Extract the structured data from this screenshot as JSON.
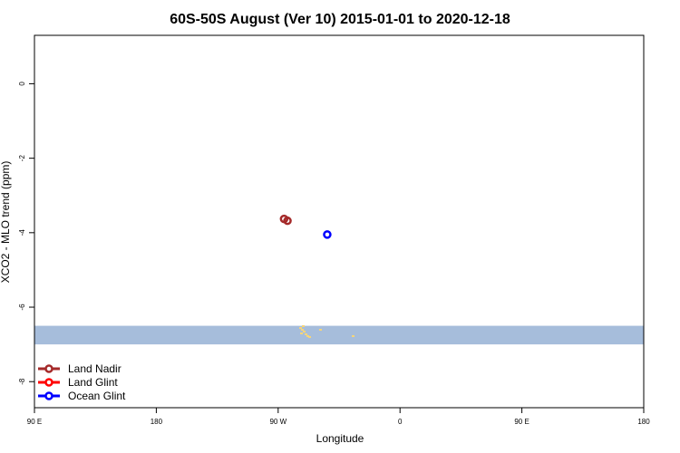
{
  "chart_data": {
    "type": "scatter",
    "title": "60S-50S August (Ver 10)   2015-01-01 to 2020-12-18",
    "xlabel": "Longitude",
    "ylabel": "XCO2 - MLO trend (ppm)",
    "xlim": [
      90,
      450
    ],
    "ylim": [
      -8.7,
      1.3
    ],
    "x_ticks": [
      {
        "value": 90,
        "label": "90 E"
      },
      {
        "value": 162,
        "label": "180"
      },
      {
        "value": 234,
        "label": "90 W"
      },
      {
        "value": 306,
        "label": "0"
      },
      {
        "value": 378,
        "label": "90 E"
      },
      {
        "value": 450,
        "label": "180"
      }
    ],
    "y_ticks": [
      {
        "value": 0,
        "label": "0"
      },
      {
        "value": -2,
        "label": "-2"
      },
      {
        "value": -4,
        "label": "-4"
      },
      {
        "value": -6,
        "label": "-6"
      },
      {
        "value": -8,
        "label": "-8"
      }
    ],
    "series": [
      {
        "name": "Land Nadir",
        "color": "#a52a2a",
        "points": [
          [
            237.5,
            -3.63
          ],
          [
            239.5,
            -3.68
          ]
        ]
      },
      {
        "name": "Land Glint",
        "color": "#ff0000",
        "points": []
      },
      {
        "name": "Ocean Glint",
        "color": "#0000ff",
        "points": [
          [
            263,
            -4.05
          ]
        ]
      }
    ],
    "map_band": {
      "color": "#a6bddb",
      "y_range": [
        -7.0,
        -6.5
      ],
      "land_color": "#f5d57a"
    },
    "legend_placement": "bottom-left",
    "grid": false
  }
}
